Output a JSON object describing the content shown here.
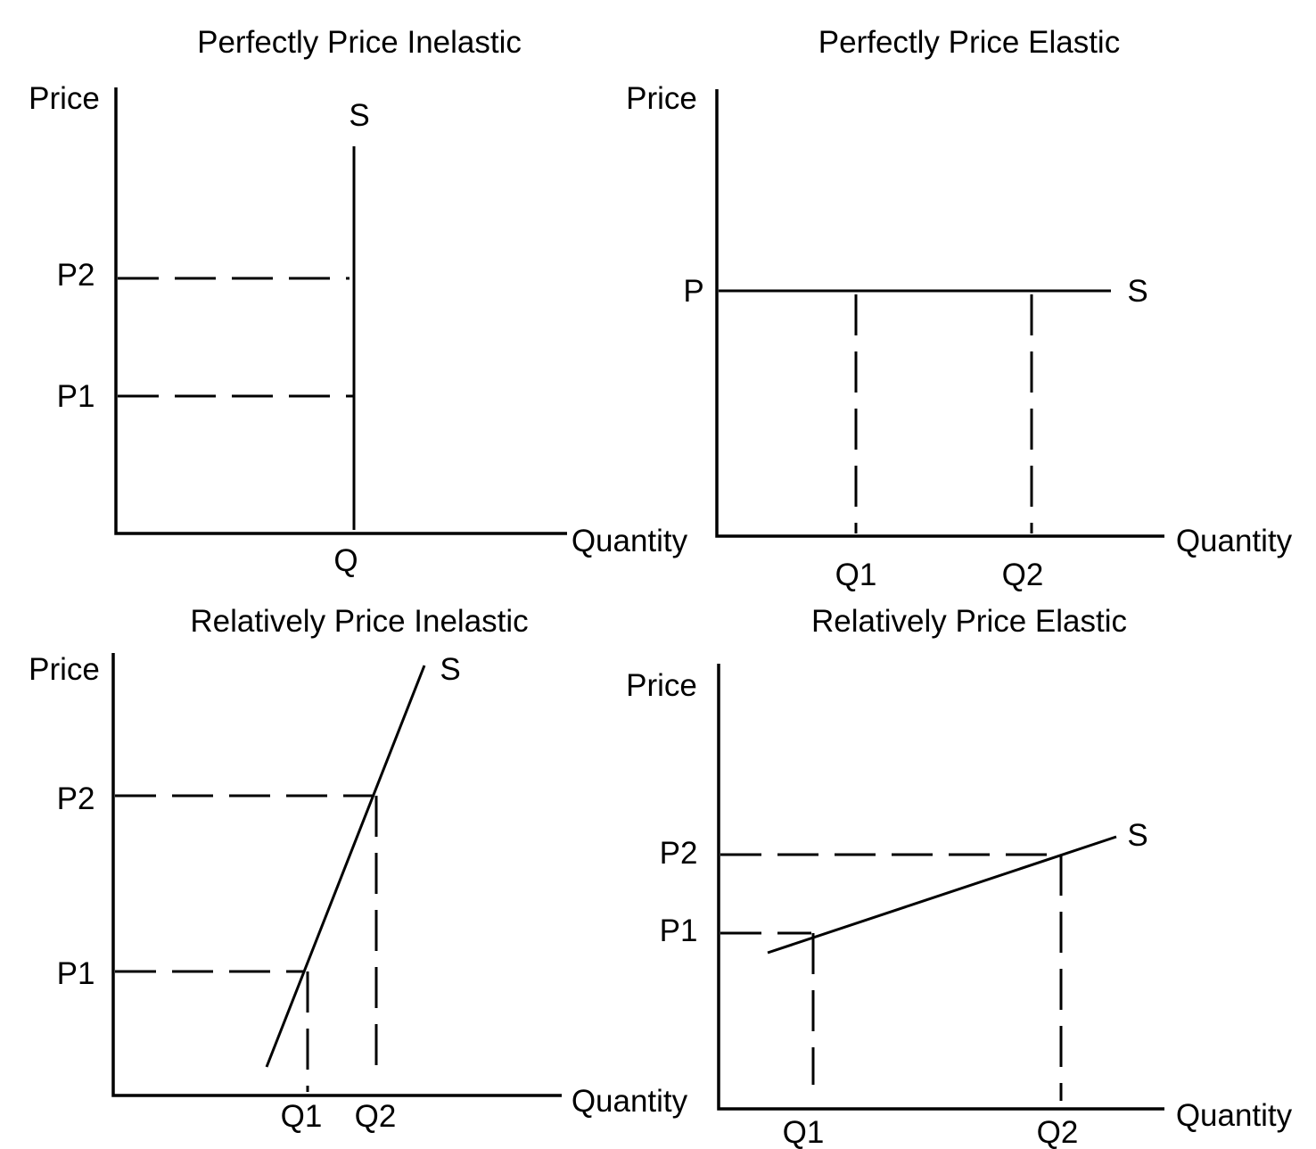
{
  "panels": {
    "perfectly_inelastic": {
      "title": "Perfectly Price Inelastic",
      "y_label": "Price",
      "x_label": "Quantity",
      "curve_label": "S",
      "price_labels": [
        "P2",
        "P1"
      ],
      "quantity_labels": [
        "Q"
      ]
    },
    "perfectly_elastic": {
      "title": "Perfectly Price Elastic",
      "y_label": "Price",
      "x_label": "Quantity",
      "curve_label": "S",
      "price_labels": [
        "P"
      ],
      "quantity_labels": [
        "Q1",
        "Q2"
      ]
    },
    "relatively_inelastic": {
      "title": "Relatively Price Inelastic",
      "y_label": "Price",
      "x_label": "Quantity",
      "curve_label": "S",
      "price_labels": [
        "P2",
        "P1"
      ],
      "quantity_labels": [
        "Q1",
        "Q2"
      ]
    },
    "relatively_elastic": {
      "title": "Relatively Price Elastic",
      "y_label": "Price",
      "x_label": "Quantity",
      "curve_label": "S",
      "price_labels": [
        "P2",
        "P1"
      ],
      "quantity_labels": [
        "Q1",
        "Q2"
      ]
    }
  }
}
